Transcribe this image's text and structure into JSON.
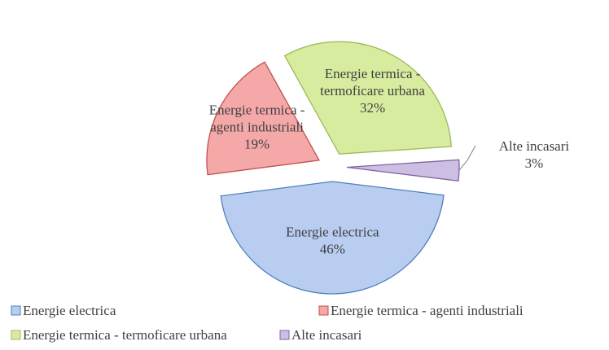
{
  "chart_data": {
    "type": "pie",
    "categories": [
      "Energie electrica",
      "Energie termica - agenti industriali",
      "Energie termica - termoficare urbana",
      "Alte incasari"
    ],
    "values": [
      46,
      19,
      32,
      3
    ],
    "value_labels": [
      "46%",
      "19%",
      "32%",
      "3%"
    ],
    "colors": [
      "#b8cdef",
      "#f4a9a8",
      "#d8eca0",
      "#cdbfe3"
    ],
    "legend": "bottom"
  }
}
